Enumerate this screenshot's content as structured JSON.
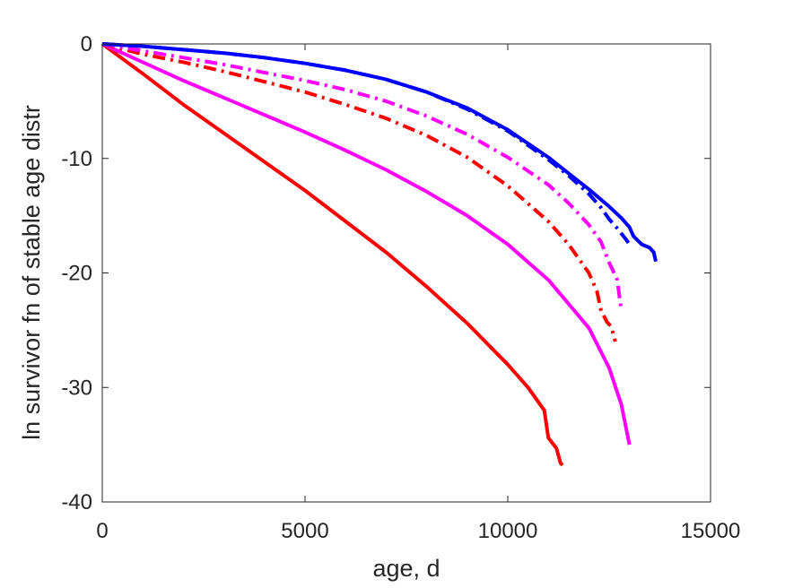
{
  "chart_data": {
    "type": "line",
    "title": "",
    "xlabel": "age, d",
    "ylabel": "ln survivor fn of stable age distr",
    "xlim": [
      0,
      15000
    ],
    "ylim": [
      -40,
      0
    ],
    "xticks": [
      0,
      5000,
      10000,
      15000
    ],
    "yticks": [
      0,
      -10,
      -20,
      -30,
      -40
    ],
    "xtick_labels": [
      "0",
      "5000",
      "10000",
      "15000"
    ],
    "ytick_labels": [
      "0",
      "-10",
      "-20",
      "-30",
      "-40"
    ],
    "grid": false,
    "box": true,
    "series": [
      {
        "color": "#ff0000",
        "style": "solid",
        "x": [
          0,
          1000,
          2000,
          3000,
          4000,
          5000,
          6000,
          7000,
          8000,
          9000,
          10000,
          10500,
          10900,
          11000,
          11200,
          11300,
          11350
        ],
        "y": [
          0,
          -2.6,
          -5.3,
          -7.8,
          -10.3,
          -12.8,
          -15.5,
          -18.2,
          -21.2,
          -24.4,
          -28.0,
          -30.0,
          -32.0,
          -34.4,
          -35.3,
          -36.6,
          -36.8
        ]
      },
      {
        "color": "#ff00ff",
        "style": "solid",
        "x": [
          0,
          1000,
          2000,
          3000,
          4000,
          5000,
          6000,
          7000,
          8000,
          9000,
          10000,
          11000,
          12000,
          12500,
          12800,
          13000
        ],
        "y": [
          0,
          -1.6,
          -3.2,
          -4.7,
          -6.2,
          -7.7,
          -9.3,
          -11.0,
          -12.9,
          -15.0,
          -17.5,
          -20.6,
          -24.8,
          -28.3,
          -31.5,
          -35.0
        ]
      },
      {
        "color": "#ff0000",
        "style": "dashdot",
        "x": [
          0,
          1000,
          2000,
          3000,
          4000,
          5000,
          6000,
          7000,
          8000,
          9000,
          10000,
          11000,
          11500,
          12000,
          12200,
          12300,
          12450,
          12550,
          12650
        ],
        "y": [
          0,
          -0.9,
          -1.6,
          -2.4,
          -3.3,
          -4.2,
          -5.3,
          -6.5,
          -8.0,
          -9.9,
          -12.4,
          -15.5,
          -17.5,
          -20.0,
          -21.6,
          -23.3,
          -24.3,
          -24.7,
          -26.0
        ]
      },
      {
        "color": "#ff00ff",
        "style": "dashdot",
        "x": [
          0,
          1000,
          2000,
          3000,
          4000,
          5000,
          6000,
          7000,
          8000,
          9000,
          10000,
          11000,
          11500,
          12000,
          12300,
          12500,
          12700,
          12800
        ],
        "y": [
          0,
          -0.6,
          -1.2,
          -1.8,
          -2.5,
          -3.2,
          -4.0,
          -5.0,
          -6.3,
          -7.9,
          -9.9,
          -12.3,
          -13.9,
          -15.8,
          -17.3,
          -19.1,
          -20.6,
          -23.3
        ]
      },
      {
        "color": "#0000ff",
        "style": "dashdot",
        "x": [
          0,
          1000,
          2000,
          3000,
          4000,
          5000,
          6000,
          7000,
          8000,
          9000,
          10000,
          11000,
          11500,
          12000,
          12300,
          12500,
          12700,
          12900,
          13000
        ],
        "y": [
          0,
          -0.2,
          -0.5,
          -0.8,
          -1.2,
          -1.7,
          -2.3,
          -3.1,
          -4.2,
          -5.7,
          -7.6,
          -10.1,
          -11.5,
          -13.1,
          -14.3,
          -15.3,
          -16.1,
          -17.0,
          -17.5
        ]
      },
      {
        "color": "#0000ff",
        "style": "solid",
        "x": [
          0,
          1000,
          2000,
          3000,
          4000,
          5000,
          6000,
          7000,
          8000,
          9000,
          10000,
          11000,
          11500,
          12000,
          12500,
          12800,
          13000,
          13100,
          13300,
          13500,
          13600,
          13650
        ],
        "y": [
          0,
          -0.2,
          -0.5,
          -0.8,
          -1.2,
          -1.7,
          -2.3,
          -3.1,
          -4.2,
          -5.6,
          -7.5,
          -9.9,
          -11.3,
          -12.7,
          -14.2,
          -15.2,
          -16.0,
          -16.8,
          -17.5,
          -17.8,
          -18.2,
          -19.0
        ]
      }
    ]
  }
}
